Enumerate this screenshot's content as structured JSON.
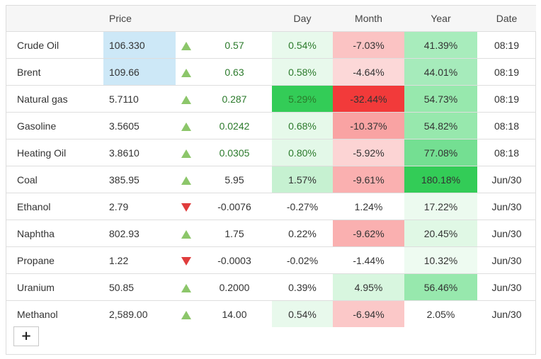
{
  "header": {
    "name": "",
    "price": "Price",
    "arrow": "",
    "change": "",
    "day": "Day",
    "month": "Month",
    "year": "Year",
    "date": "Date"
  },
  "rows": [
    {
      "name": "Crude Oil",
      "price": "106.330",
      "direction": "up",
      "change": "0.57",
      "day": "0.54%",
      "month": "-7.03%",
      "year": "41.39%",
      "date": "08:19",
      "colors": {
        "price": "#cde8f7",
        "change_text": "#2b7a2b",
        "day": "#e8f9ec",
        "month": "#fbc3c3",
        "year": "#a8ecbc"
      }
    },
    {
      "name": "Brent",
      "price": "109.66",
      "direction": "up",
      "change": "0.63",
      "day": "0.58%",
      "month": "-4.64%",
      "year": "44.01%",
      "date": "08:19",
      "colors": {
        "price": "#cde8f7",
        "change_text": "#2b7a2b",
        "day": "#e8f9ec",
        "month": "#fcd8d8",
        "year": "#a6ebbb"
      }
    },
    {
      "name": "Natural gas",
      "price": "5.7110",
      "direction": "up",
      "change": "0.287",
      "day": "5.29%",
      "month": "-32.44%",
      "year": "54.73%",
      "date": "08:19",
      "colors": {
        "price": "",
        "change_text": "#2b7a2b",
        "day": "#33cc57",
        "month": "#f23a3a",
        "year": "#97e8ad"
      }
    },
    {
      "name": "Gasoline",
      "price": "3.5605",
      "direction": "up",
      "change": "0.0242",
      "day": "0.68%",
      "month": "-10.37%",
      "year": "54.82%",
      "date": "08:18",
      "colors": {
        "price": "",
        "change_text": "#2b7a2b",
        "day": "#e6f9ea",
        "month": "#f9a3a3",
        "year": "#97e8ad"
      }
    },
    {
      "name": "Heating Oil",
      "price": "3.8610",
      "direction": "up",
      "change": "0.0305",
      "day": "0.80%",
      "month": "-5.92%",
      "year": "77.08%",
      "date": "08:18",
      "colors": {
        "price": "",
        "change_text": "#2b7a2b",
        "day": "#e3f8e8",
        "month": "#fcd4d4",
        "year": "#74df92"
      }
    },
    {
      "name": "Coal",
      "price": "385.95",
      "direction": "up",
      "change": "5.95",
      "day": "1.57%",
      "month": "-9.61%",
      "year": "180.18%",
      "date": "Jun/30",
      "colors": {
        "price": "",
        "change_text": "",
        "day": "#c6f1d1",
        "month": "#fab0b0",
        "year": "#33cc57"
      }
    },
    {
      "name": "Ethanol",
      "price": "2.79",
      "direction": "down",
      "change": "-0.0076",
      "day": "-0.27%",
      "month": "1.24%",
      "year": "17.22%",
      "date": "Jun/30",
      "colors": {
        "price": "",
        "change_text": "",
        "day": "",
        "month": "",
        "year": "#ecfaef"
      }
    },
    {
      "name": "Naphtha",
      "price": "802.93",
      "direction": "up",
      "change": "1.75",
      "day": "0.22%",
      "month": "-9.62%",
      "year": "20.45%",
      "date": "Jun/30",
      "colors": {
        "price": "",
        "change_text": "",
        "day": "",
        "month": "#fab0b0",
        "year": "#e0f8e5"
      }
    },
    {
      "name": "Propane",
      "price": "1.22",
      "direction": "down",
      "change": "-0.0003",
      "day": "-0.02%",
      "month": "-1.44%",
      "year": "10.32%",
      "date": "Jun/30",
      "colors": {
        "price": "",
        "change_text": "",
        "day": "",
        "month": "",
        "year": "#eefbf1"
      }
    },
    {
      "name": "Uranium",
      "price": "50.85",
      "direction": "up",
      "change": "0.2000",
      "day": "0.39%",
      "month": "4.95%",
      "year": "56.46%",
      "date": "Jun/30",
      "colors": {
        "price": "",
        "change_text": "",
        "day": "",
        "month": "#d8f6df",
        "year": "#97e8ad"
      }
    },
    {
      "name": "Methanol",
      "price": "2,589.00",
      "direction": "up",
      "change": "14.00",
      "day": "0.54%",
      "month": "-6.94%",
      "year": "2.05%",
      "date": "Jun/30",
      "colors": {
        "price": "",
        "change_text": "",
        "day": "#e8f9ec",
        "month": "#fbc8c8",
        "year": ""
      }
    }
  ],
  "add_button": {
    "label": "+"
  }
}
